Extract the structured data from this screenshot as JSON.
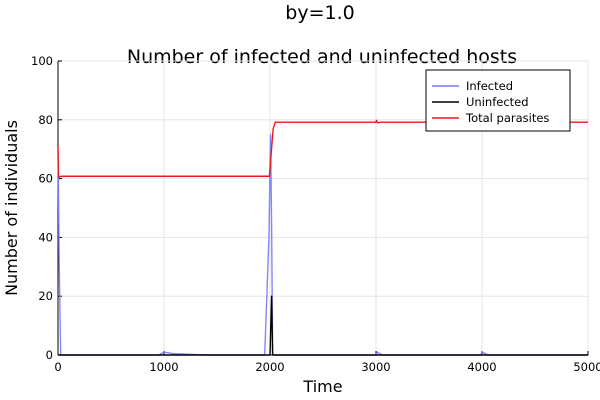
{
  "chart_data": {
    "type": "line",
    "figure_title": "by=1.0",
    "title": "Number of infected and uninfected hosts",
    "xlabel": "Time",
    "ylabel": "Number of individuals",
    "xlim": [
      0,
      5000
    ],
    "ylim": [
      0,
      100
    ],
    "x_ticks": [
      0,
      1000,
      2000,
      3000,
      4000,
      5000
    ],
    "y_ticks": [
      0,
      20,
      40,
      60,
      80,
      100
    ],
    "grid": true,
    "legend_position": "top-right",
    "series": [
      {
        "name": "Infected",
        "color": "#7777ff",
        "points": [
          [
            0,
            70
          ],
          [
            12,
            30
          ],
          [
            25,
            0
          ],
          [
            950,
            0
          ],
          [
            1000,
            1
          ],
          [
            1080,
            0.5
          ],
          [
            1400,
            0
          ],
          [
            1950,
            0
          ],
          [
            1990,
            40
          ],
          [
            2005,
            75
          ],
          [
            2015,
            45
          ],
          [
            2025,
            0
          ],
          [
            2040,
            0
          ],
          [
            3000,
            0
          ],
          [
            3010,
            1
          ],
          [
            3060,
            0
          ],
          [
            3990,
            0
          ],
          [
            4000,
            1
          ],
          [
            4060,
            0
          ],
          [
            5000,
            0
          ]
        ]
      },
      {
        "name": "Uninfected",
        "color": "#000000",
        "points": [
          [
            0,
            0
          ],
          [
            1500,
            0
          ],
          [
            2000,
            0
          ],
          [
            2015,
            20
          ],
          [
            2025,
            0
          ],
          [
            2050,
            0
          ],
          [
            5000,
            0
          ]
        ]
      },
      {
        "name": "Total parasites",
        "color": "#e41a1c",
        "points": [
          [
            0,
            71
          ],
          [
            5,
            61
          ],
          [
            10,
            60.5
          ],
          [
            30,
            60.8
          ],
          [
            1000,
            60.8
          ],
          [
            1995,
            60.8
          ],
          [
            2010,
            68
          ],
          [
            2030,
            77
          ],
          [
            2050,
            79.2
          ],
          [
            3000,
            79.2
          ],
          [
            3005,
            79.8
          ],
          [
            3015,
            79
          ],
          [
            3050,
            79.2
          ],
          [
            5000,
            79.2
          ]
        ]
      }
    ]
  }
}
